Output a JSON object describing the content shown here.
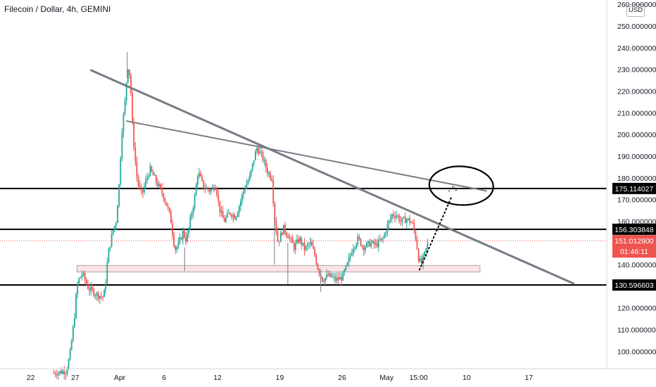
{
  "header": {
    "title": "Filecoin / Dollar, 4h, GEMINI",
    "currency_badge": "USD"
  },
  "chart_data": {
    "type": "candlestick",
    "title": "Filecoin / Dollar, 4h, GEMINI",
    "ylim": [
      90,
      260
    ],
    "y_ticks": [
      "260.000000",
      "250.000000",
      "240.000000",
      "230.000000",
      "220.000000",
      "210.000000",
      "200.000000",
      "190.000000",
      "180.000000",
      "170.000000",
      "160.000000",
      "150.000000",
      "140.000000",
      "130.000000",
      "120.000000",
      "110.000000",
      "100.000000"
    ],
    "y_tick_values": [
      260,
      250,
      240,
      230,
      220,
      210,
      200,
      190,
      180,
      170,
      160,
      150,
      140,
      130,
      120,
      110,
      100
    ],
    "x_ticks": [
      "22",
      "27",
      "Apr",
      "6",
      "12",
      "19",
      "26",
      "May",
      "15:00",
      "10",
      "17"
    ],
    "x_tick_days": [
      -10,
      -5,
      0,
      5,
      11,
      18,
      25,
      30,
      33.6,
      39,
      46
    ],
    "last_price": {
      "value": 151.0129,
      "label": "151.012900",
      "countdown": "01:46:11",
      "color": "#ef5350"
    },
    "horizontal_levels": [
      {
        "value": 175.114027,
        "label": "175.114027"
      },
      {
        "value": 156.303848,
        "label": "156.303848"
      },
      {
        "value": 130.596603,
        "label": "130.596603"
      }
    ],
    "support_zone": {
      "from_day": -4.8,
      "to_day": 40.5,
      "low": 136.6,
      "high": 139.6
    },
    "trendlines": [
      {
        "from": [
          -3.2,
          229.6
        ],
        "to": [
          51,
          131.3
        ],
        "color": "#787b86",
        "width": 3
      },
      {
        "from": [
          0.8,
          206.2
        ],
        "to": [
          41.2,
          174.0
        ],
        "color": "#787b86",
        "width": 2
      }
    ],
    "projection": {
      "from": [
        33.7,
        137.6
      ],
      "to": [
        37.3,
        171.2
      ]
    },
    "target_ellipse": {
      "center": [
        38.4,
        176.4
      ],
      "rx_days": 3.6,
      "ry_price": 8.9
    },
    "up_color": "#26a69a",
    "down_color": "#ef5350",
    "anchors": [
      [
        -7.4,
        90
      ],
      [
        -6,
        91
      ],
      [
        -5.6,
        98
      ],
      [
        -5.1,
        115
      ],
      [
        -4.8,
        130
      ],
      [
        -4.6,
        133
      ],
      [
        -4.2,
        136
      ],
      [
        -3.5,
        129
      ],
      [
        -2.5,
        126
      ],
      [
        -1.8,
        125
      ],
      [
        -1.6,
        131
      ],
      [
        -1.3,
        145
      ],
      [
        -0.8,
        155
      ],
      [
        -0.4,
        160
      ],
      [
        0,
        180
      ],
      [
        0.2,
        200
      ],
      [
        0.6,
        215
      ],
      [
        0.9,
        232
      ],
      [
        1.2,
        226
      ],
      [
        1.4,
        206
      ],
      [
        1.7,
        190
      ],
      [
        2,
        178
      ],
      [
        2.5,
        172
      ],
      [
        2.9,
        178
      ],
      [
        3.4,
        184
      ],
      [
        3.9,
        180
      ],
      [
        4.4,
        176
      ],
      [
        5,
        171
      ],
      [
        5.7,
        162
      ],
      [
        6.2,
        147
      ],
      [
        6.6,
        149
      ],
      [
        7.1,
        155
      ],
      [
        7.5,
        151
      ],
      [
        8,
        162
      ],
      [
        8.4,
        170
      ],
      [
        8.8,
        183
      ],
      [
        9.4,
        176
      ],
      [
        10.2,
        174
      ],
      [
        10.8,
        177
      ],
      [
        11.2,
        166
      ],
      [
        11.7,
        160
      ],
      [
        12.4,
        164
      ],
      [
        13,
        162
      ],
      [
        13.5,
        168
      ],
      [
        14,
        175
      ],
      [
        14.6,
        180
      ],
      [
        15.4,
        194
      ],
      [
        16,
        190
      ],
      [
        16.6,
        183
      ],
      [
        17.1,
        180
      ],
      [
        17.4,
        162
      ],
      [
        17.8,
        150
      ],
      [
        18.4,
        157
      ],
      [
        19,
        153
      ],
      [
        19.6,
        148
      ],
      [
        20.2,
        152
      ],
      [
        20.8,
        147
      ],
      [
        21.4,
        150
      ],
      [
        21.9,
        145
      ],
      [
        22.3,
        138
      ],
      [
        22.8,
        133
      ],
      [
        23.5,
        135
      ],
      [
        24.3,
        133
      ],
      [
        25,
        134
      ],
      [
        25.6,
        140
      ],
      [
        26.2,
        148
      ],
      [
        26.8,
        152
      ],
      [
        27.4,
        148
      ],
      [
        28.2,
        150
      ],
      [
        28.8,
        149
      ],
      [
        29.6,
        152
      ],
      [
        30.1,
        158
      ],
      [
        30.6,
        163
      ],
      [
        31.1,
        163
      ],
      [
        31.6,
        160
      ],
      [
        32.3,
        161
      ],
      [
        32.9,
        159
      ],
      [
        33.3,
        152
      ],
      [
        33.6,
        143
      ],
      [
        33.9,
        140
      ],
      [
        34.3,
        145
      ],
      [
        34.7,
        151
      ]
    ]
  }
}
